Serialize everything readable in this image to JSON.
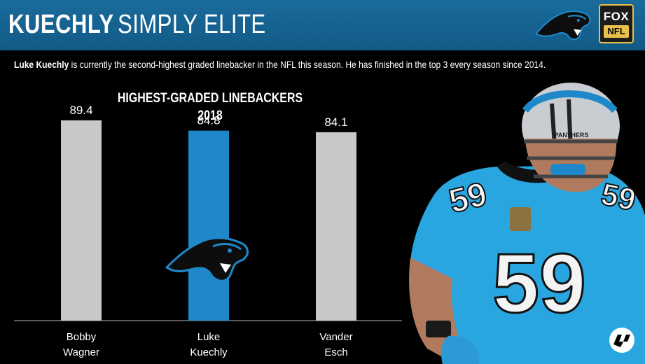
{
  "header": {
    "title_bold": "KUECHLY",
    "title_light": "SIMPLY ELITE",
    "network": "FOX",
    "league": "NFL"
  },
  "caption": {
    "name": "Luke Kuechly",
    "text": " is currently the second-highest graded linebacker in the NFL this season. He has finished in the top 3 every season since 2014."
  },
  "chart_data": {
    "type": "bar",
    "title": "HIGHEST-GRADED LINEBACKERS",
    "subtitle": "2018",
    "categories": [
      "Bobby Wagner",
      "Luke Kuechly",
      "Vander Esch"
    ],
    "category_lines": [
      [
        "Bobby",
        "Wagner"
      ],
      [
        "Luke",
        "Kuechly"
      ],
      [
        "Vander",
        "Esch"
      ]
    ],
    "values": [
      89.4,
      84.8,
      84.1
    ],
    "value_labels": [
      "89.4",
      "84.8",
      "84.1"
    ],
    "bar_colors": [
      "#c8c8c8",
      "#1e88c9",
      "#c8c8c8"
    ],
    "ylim": [
      0,
      100
    ],
    "grid": false,
    "legend": "none"
  },
  "player": {
    "jersey_number": "59",
    "helmet_text": "PANTHERS"
  },
  "colors": {
    "banner": "#14628f",
    "panthers_blue": "#1e88c9",
    "bar_gray": "#c8c8c8",
    "background": "#000000"
  },
  "icons": [
    "panthers-logo-icon",
    "fox-nfl-logo-icon",
    "pff-logo-icon"
  ]
}
